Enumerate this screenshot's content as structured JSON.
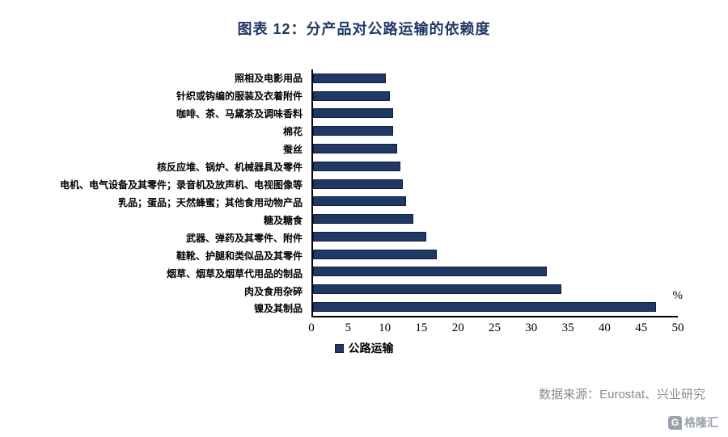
{
  "header": {
    "title": "图表 12：分产品对公路运输的依赖度"
  },
  "chart_data": {
    "type": "bar",
    "orientation": "horizontal",
    "title": "图表 12：分产品对公路运输的依赖度",
    "categories": [
      "照相及电影用品",
      "针织或钩编的服装及衣着附件",
      "咖啡、茶、马黛茶及调味香料",
      "棉花",
      "蚕丝",
      "核反应堆、锅炉、机械器具及零件",
      "电机、电气设备及其零件；录音机及放声机、电视图像等",
      "乳品；蛋品；天然蜂蜜；其他食用动物产品",
      "糖及糖食",
      "武器、弹药及其零件、附件",
      "鞋靴、护腿和类似品及其零件",
      "烟草、烟草及烟草代用品的制品",
      "肉及食用杂碎",
      "镍及其制品"
    ],
    "values": [
      10,
      10.5,
      11,
      11,
      11.5,
      12,
      12.3,
      12.7,
      13.8,
      15.5,
      17,
      32,
      34,
      47
    ],
    "series": [
      {
        "name": "公路运输",
        "values": [
          10,
          10.5,
          11,
          11,
          11.5,
          12,
          12.3,
          12.7,
          13.8,
          15.5,
          17,
          32,
          34,
          47
        ]
      }
    ],
    "xlim": [
      0,
      50
    ],
    "xticks": [
      0,
      5,
      10,
      15,
      20,
      25,
      30,
      35,
      40,
      45,
      50
    ],
    "unit": "%",
    "grid": false,
    "legend_entries": [
      "公路运输"
    ],
    "legend_position": "bottom"
  },
  "axis": {
    "unit_label": "%"
  },
  "legend": {
    "label": "公路运输"
  },
  "footer": {
    "source": "数据来源：Eurostat、兴业研究",
    "logo_text": "格隆汇",
    "logo_glyph": "G"
  },
  "colors": {
    "bar": "#1f3864",
    "title": "#1f3864",
    "axis": "#000000",
    "source": "#8a8a8a",
    "logo": "#9aa2ad"
  }
}
